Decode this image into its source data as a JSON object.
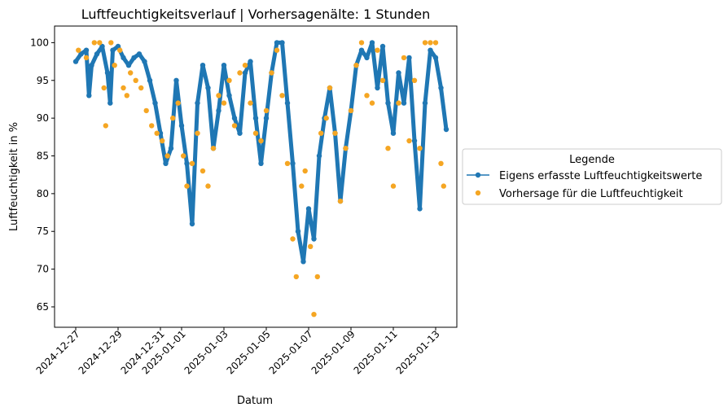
{
  "chart_data": {
    "type": "scatter",
    "title": "Luftfeuchtigkeitsverlauf | Vorhersagenälte: 1 Stunden",
    "xlabel": "Datum",
    "ylabel": "Luftfeuchtigkeit in %",
    "xlim": [
      "2024-12-26",
      "2025-01-14"
    ],
    "ylim": [
      62.3,
      102.2
    ],
    "x_ticks": [
      "2024-12-27",
      "2024-12-29",
      "2024-12-31",
      "2025-01-01",
      "2025-01-03",
      "2025-01-05",
      "2025-01-07",
      "2025-01-09",
      "2025-01-11",
      "2025-01-13"
    ],
    "y_ticks": [
      65,
      70,
      75,
      80,
      85,
      90,
      95,
      100
    ],
    "grid": false,
    "legend": {
      "title": "Legende",
      "placement": "outside-right"
    },
    "series": [
      {
        "name": "Eigens erfasste Luftfeuchtigkeitswerte",
        "style": "line-marker",
        "color": "#1f77b4",
        "points": [
          [
            "2024-12-27 00:00",
            97.5
          ],
          [
            "2024-12-27 06:00",
            98.5
          ],
          [
            "2024-12-27 12:00",
            99.0
          ],
          [
            "2024-12-27 15:00",
            93.0
          ],
          [
            "2024-12-27 18:00",
            97.0
          ],
          [
            "2024-12-28 00:00",
            98.5
          ],
          [
            "2024-12-28 06:00",
            99.5
          ],
          [
            "2024-12-28 12:00",
            96.0
          ],
          [
            "2024-12-28 15:00",
            92.0
          ],
          [
            "2024-12-28 18:00",
            99.0
          ],
          [
            "2024-12-29 00:00",
            99.5
          ],
          [
            "2024-12-29 06:00",
            98.0
          ],
          [
            "2024-12-29 12:00",
            97.0
          ],
          [
            "2024-12-29 18:00",
            98.0
          ],
          [
            "2024-12-30 00:00",
            98.5
          ],
          [
            "2024-12-30 06:00",
            97.5
          ],
          [
            "2024-12-30 12:00",
            95.0
          ],
          [
            "2024-12-30 18:00",
            92.0
          ],
          [
            "2024-12-31 00:00",
            88.0
          ],
          [
            "2024-12-31 06:00",
            84.0
          ],
          [
            "2024-12-31 12:00",
            86.0
          ],
          [
            "2024-12-31 18:00",
            95.0
          ],
          [
            "2025-01-01 00:00",
            89.0
          ],
          [
            "2025-01-01 06:00",
            84.0
          ],
          [
            "2025-01-01 12:00",
            76.0
          ],
          [
            "2025-01-01 18:00",
            92.0
          ],
          [
            "2025-01-02 00:00",
            97.0
          ],
          [
            "2025-01-02 06:00",
            94.0
          ],
          [
            "2025-01-02 12:00",
            86.0
          ],
          [
            "2025-01-02 18:00",
            91.0
          ],
          [
            "2025-01-03 00:00",
            97.0
          ],
          [
            "2025-01-03 06:00",
            93.0
          ],
          [
            "2025-01-03 12:00",
            90.0
          ],
          [
            "2025-01-03 18:00",
            88.0
          ],
          [
            "2025-01-04 00:00",
            96.0
          ],
          [
            "2025-01-04 06:00",
            97.5
          ],
          [
            "2025-01-04 12:00",
            90.0
          ],
          [
            "2025-01-04 18:00",
            84.0
          ],
          [
            "2025-01-05 00:00",
            90.0
          ],
          [
            "2025-01-05 06:00",
            96.0
          ],
          [
            "2025-01-05 12:00",
            100.0
          ],
          [
            "2025-01-05 18:00",
            100.0
          ],
          [
            "2025-01-06 00:00",
            92.0
          ],
          [
            "2025-01-06 06:00",
            84.0
          ],
          [
            "2025-01-06 12:00",
            75.0
          ],
          [
            "2025-01-06 18:00",
            71.0
          ],
          [
            "2025-01-07 00:00",
            78.0
          ],
          [
            "2025-01-07 06:00",
            74.0
          ],
          [
            "2025-01-07 12:00",
            85.0
          ],
          [
            "2025-01-07 18:00",
            90.0
          ],
          [
            "2025-01-08 00:00",
            94.0
          ],
          [
            "2025-01-08 06:00",
            88.0
          ],
          [
            "2025-01-08 12:00",
            79.0
          ],
          [
            "2025-01-08 18:00",
            86.0
          ],
          [
            "2025-01-09 00:00",
            91.0
          ],
          [
            "2025-01-09 06:00",
            97.0
          ],
          [
            "2025-01-09 12:00",
            99.0
          ],
          [
            "2025-01-09 18:00",
            98.0
          ],
          [
            "2025-01-10 00:00",
            100.0
          ],
          [
            "2025-01-10 06:00",
            94.0
          ],
          [
            "2025-01-10 12:00",
            99.5
          ],
          [
            "2025-01-10 18:00",
            92.0
          ],
          [
            "2025-01-11 00:00",
            88.0
          ],
          [
            "2025-01-11 06:00",
            96.0
          ],
          [
            "2025-01-11 12:00",
            92.0
          ],
          [
            "2025-01-11 18:00",
            98.0
          ],
          [
            "2025-01-12 00:00",
            87.0
          ],
          [
            "2025-01-12 06:00",
            78.0
          ],
          [
            "2025-01-12 12:00",
            92.0
          ],
          [
            "2025-01-12 18:00",
            99.0
          ],
          [
            "2025-01-13 00:00",
            98.0
          ],
          [
            "2025-01-13 06:00",
            94.0
          ],
          [
            "2025-01-13 12:00",
            88.5
          ]
        ]
      },
      {
        "name": "Vorhersage für die Luftfeuchtigkeit",
        "style": "marker",
        "color": "#f5a623",
        "points": [
          [
            "2024-12-27 03:00",
            99.0
          ],
          [
            "2024-12-27 12:00",
            98.0
          ],
          [
            "2024-12-27 21:00",
            100.0
          ],
          [
            "2024-12-28 03:00",
            100.0
          ],
          [
            "2024-12-28 08:00",
            94.0
          ],
          [
            "2024-12-28 10:00",
            89.0
          ],
          [
            "2024-12-28 16:00",
            100.0
          ],
          [
            "2024-12-28 20:00",
            97.0
          ],
          [
            "2024-12-29 02:00",
            99.0
          ],
          [
            "2024-12-29 06:00",
            94.0
          ],
          [
            "2024-12-29 10:00",
            93.0
          ],
          [
            "2024-12-29 14:00",
            96.0
          ],
          [
            "2024-12-29 20:00",
            95.0
          ],
          [
            "2024-12-30 02:00",
            94.0
          ],
          [
            "2024-12-30 08:00",
            91.0
          ],
          [
            "2024-12-30 14:00",
            89.0
          ],
          [
            "2024-12-30 20:00",
            88.0
          ],
          [
            "2024-12-31 02:00",
            87.0
          ],
          [
            "2024-12-31 08:00",
            85.0
          ],
          [
            "2024-12-31 14:00",
            90.0
          ],
          [
            "2024-12-31 20:00",
            92.0
          ],
          [
            "2025-01-01 02:00",
            85.0
          ],
          [
            "2025-01-01 06:00",
            81.0
          ],
          [
            "2025-01-01 12:00",
            84.0
          ],
          [
            "2025-01-01 18:00",
            88.0
          ],
          [
            "2025-01-02 00:00",
            83.0
          ],
          [
            "2025-01-02 06:00",
            81.0
          ],
          [
            "2025-01-02 12:00",
            86.0
          ],
          [
            "2025-01-02 18:00",
            93.0
          ],
          [
            "2025-01-03 00:00",
            92.0
          ],
          [
            "2025-01-03 06:00",
            95.0
          ],
          [
            "2025-01-03 12:00",
            89.0
          ],
          [
            "2025-01-03 18:00",
            96.0
          ],
          [
            "2025-01-04 00:00",
            97.0
          ],
          [
            "2025-01-04 06:00",
            92.0
          ],
          [
            "2025-01-04 12:00",
            88.0
          ],
          [
            "2025-01-04 18:00",
            87.0
          ],
          [
            "2025-01-05 00:00",
            91.0
          ],
          [
            "2025-01-05 06:00",
            96.0
          ],
          [
            "2025-01-05 12:00",
            99.0
          ],
          [
            "2025-01-05 18:00",
            93.0
          ],
          [
            "2025-01-06 00:00",
            84.0
          ],
          [
            "2025-01-06 06:00",
            74.0
          ],
          [
            "2025-01-06 10:00",
            69.0
          ],
          [
            "2025-01-06 16:00",
            81.0
          ],
          [
            "2025-01-06 20:00",
            83.0
          ],
          [
            "2025-01-07 02:00",
            73.0
          ],
          [
            "2025-01-07 06:00",
            64.0
          ],
          [
            "2025-01-07 10:00",
            69.0
          ],
          [
            "2025-01-07 14:00",
            88.0
          ],
          [
            "2025-01-07 20:00",
            90.0
          ],
          [
            "2025-01-08 00:00",
            94.0
          ],
          [
            "2025-01-08 06:00",
            88.0
          ],
          [
            "2025-01-08 12:00",
            79.0
          ],
          [
            "2025-01-08 18:00",
            86.0
          ],
          [
            "2025-01-09 00:00",
            91.0
          ],
          [
            "2025-01-09 06:00",
            97.0
          ],
          [
            "2025-01-09 12:00",
            100.0
          ],
          [
            "2025-01-09 18:00",
            93.0
          ],
          [
            "2025-01-10 00:00",
            92.0
          ],
          [
            "2025-01-10 06:00",
            99.0
          ],
          [
            "2025-01-10 12:00",
            95.0
          ],
          [
            "2025-01-10 18:00",
            86.0
          ],
          [
            "2025-01-11 00:00",
            81.0
          ],
          [
            "2025-01-11 06:00",
            92.0
          ],
          [
            "2025-01-11 12:00",
            98.0
          ],
          [
            "2025-01-11 18:00",
            87.0
          ],
          [
            "2025-01-12 00:00",
            95.0
          ],
          [
            "2025-01-12 06:00",
            86.0
          ],
          [
            "2025-01-12 12:00",
            100.0
          ],
          [
            "2025-01-12 18:00",
            100.0
          ],
          [
            "2025-01-13 00:00",
            100.0
          ],
          [
            "2025-01-13 06:00",
            84.0
          ],
          [
            "2025-01-13 09:00",
            81.0
          ]
        ]
      }
    ]
  }
}
